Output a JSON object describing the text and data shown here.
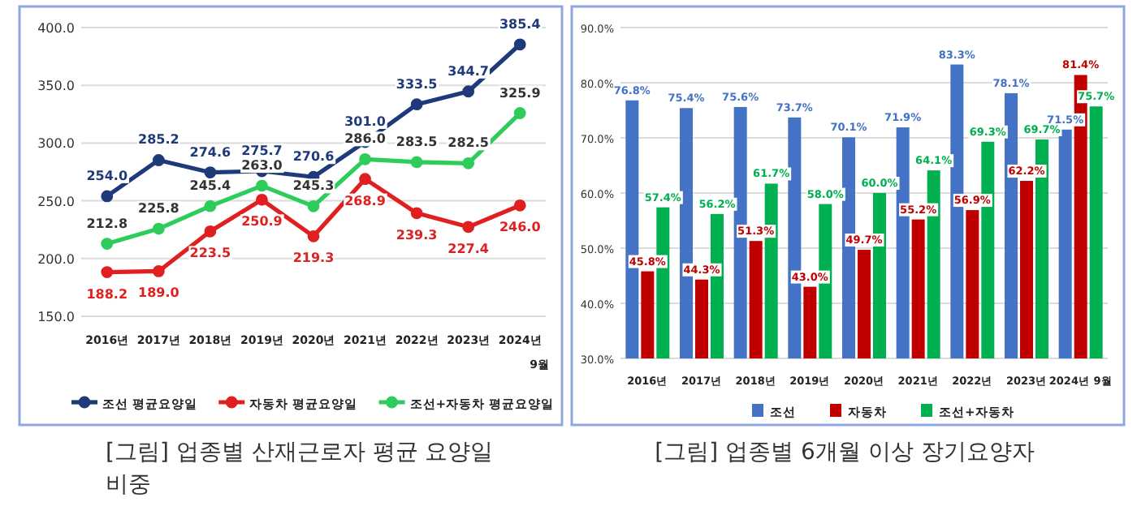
{
  "chart_data": [
    {
      "type": "line",
      "categories": [
        "2016년",
        "2017년",
        "2018년",
        "2019년",
        "2020년",
        "2021년",
        "2022년",
        "2023년",
        "2024년 9월"
      ],
      "series": [
        {
          "name": "조선 평균요양일",
          "color": "#1f3a7a",
          "values": [
            254.0,
            285.2,
            274.6,
            275.7,
            270.6,
            301.0,
            333.5,
            344.7,
            385.4
          ],
          "value_labels": [
            "254.0",
            "285.2",
            "274.6",
            "275.7",
            "270.6",
            "301.0",
            "333.5",
            "344.7",
            "385.4"
          ]
        },
        {
          "name": "자동차 평균요양일",
          "color": "#e02020",
          "values": [
            188.2,
            189.0,
            223.5,
            250.9,
            219.3,
            268.9,
            239.3,
            227.4,
            246.0
          ],
          "value_labels": [
            "188.2",
            "189.0",
            "223.5",
            "250.9",
            "219.3",
            "268.9",
            "239.3",
            "227.4",
            "246.0"
          ]
        },
        {
          "name": "조선+자동차 평균요양일",
          "color": "#2ecc5a",
          "values": [
            212.8,
            225.8,
            245.4,
            263.0,
            245.3,
            286.0,
            283.5,
            282.5,
            325.9
          ],
          "value_labels": [
            "212.8",
            "225.8",
            "245.4",
            "263.0",
            "245.3",
            "286.0",
            "283.5",
            "282.5",
            "325.9"
          ]
        }
      ],
      "ylim": [
        150,
        400
      ],
      "yticks": [
        {
          "value": 150,
          "label": "150.0"
        },
        {
          "value": 200,
          "label": "200.0"
        },
        {
          "value": 250,
          "label": "250.0"
        },
        {
          "value": 300,
          "label": "300.0"
        },
        {
          "value": 350,
          "label": "350.0"
        },
        {
          "value": 400,
          "label": "400.0"
        }
      ],
      "grid": "y",
      "legend": "bottom",
      "marker": "circle",
      "annotations": [
        "[그림] 업종별 산재근로자 평균 요양일 비중"
      ]
    },
    {
      "type": "bar",
      "categories": [
        "2016년",
        "2017년",
        "2018년",
        "2019년",
        "2020년",
        "2021년",
        "2022년",
        "2023년",
        "2024년 9월"
      ],
      "series": [
        {
          "name": "조선",
          "color": "#4472c4",
          "values": [
            76.8,
            75.4,
            75.6,
            73.7,
            70.1,
            71.9,
            83.3,
            78.1,
            71.5
          ],
          "value_labels": [
            "76.8%",
            "75.4%",
            "75.6%",
            "73.7%",
            "70.1%",
            "71.9%",
            "83.3%",
            "78.1%",
            "71.5%"
          ]
        },
        {
          "name": "자동차",
          "color": "#c00000",
          "values": [
            45.8,
            44.3,
            51.3,
            43.0,
            49.7,
            55.2,
            56.9,
            62.2,
            81.4
          ],
          "value_labels": [
            "45.8%",
            "44.3%",
            "51.3%",
            "43.0%",
            "49.7%",
            "55.2%",
            "56.9%",
            "62.2%",
            "81.4%"
          ]
        },
        {
          "name": "조선+자동차",
          "color": "#00b050",
          "values": [
            57.4,
            56.2,
            61.7,
            58.0,
            60.0,
            64.1,
            69.3,
            69.7,
            75.7
          ],
          "value_labels": [
            "57.4%",
            "56.2%",
            "61.7%",
            "58.0%",
            "60.0%",
            "64.1%",
            "69.3%",
            "69.7%",
            "75.7%"
          ]
        }
      ],
      "ylim": [
        30,
        90
      ],
      "yticks": [
        {
          "value": 30,
          "label": "30.0%"
        },
        {
          "value": 40,
          "label": "40.0%"
        },
        {
          "value": 50,
          "label": "50.0%"
        },
        {
          "value": 60,
          "label": "60.0%"
        },
        {
          "value": 70,
          "label": "70.0%"
        },
        {
          "value": 80,
          "label": "80.0%"
        },
        {
          "value": 90,
          "label": "90.0%"
        }
      ],
      "grid": "y",
      "legend": "bottom",
      "annotations": [
        "[그림] 업종별 6개월 이상 장기요양자"
      ]
    }
  ]
}
